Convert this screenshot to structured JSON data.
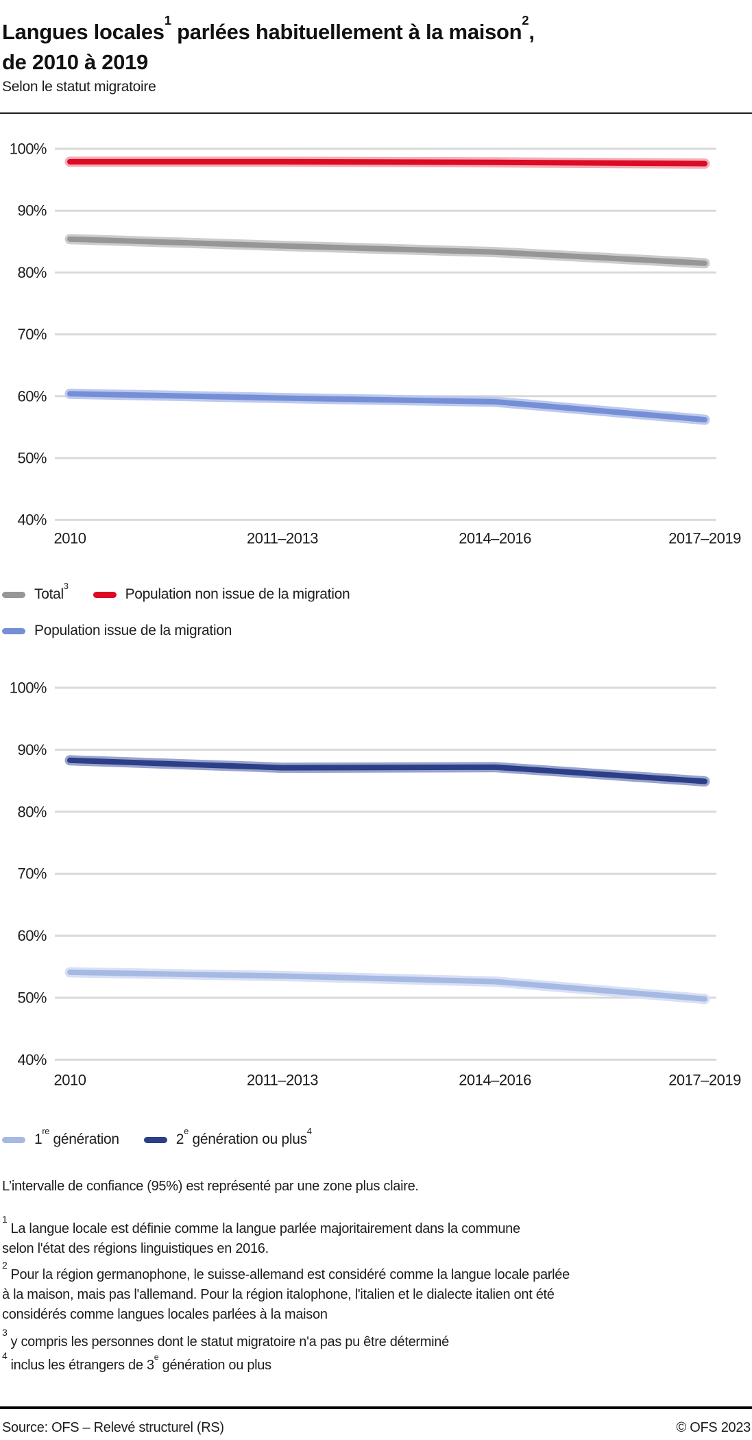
{
  "header": {
    "title": {
      "part1": "Langues locales",
      "sup1": "1",
      "part2": " parlées habituellement à la maison",
      "sup2": "2",
      "part3": ",",
      "line2": "de 2010 à 2019"
    },
    "subtitle": "Selon le statut migratoire"
  },
  "chart_data": [
    {
      "type": "line",
      "x": [
        "2010",
        "2011–2013",
        "2014–2016",
        "2017–2019"
      ],
      "y_ticks": [
        "100%",
        "90%",
        "80%",
        "70%",
        "60%",
        "50%",
        "40%"
      ],
      "ylim": [
        40,
        100
      ],
      "grid": true,
      "legend_position": "below",
      "series": [
        {
          "name": "Total",
          "values": [
            85.4,
            84.3,
            83.3,
            81.5
          ],
          "color": "#969696",
          "ci_color": "#cccccc"
        },
        {
          "name": "Population non issue de la migration",
          "values": [
            97.9,
            97.9,
            97.8,
            97.6
          ],
          "color": "#dc0a23",
          "ci_color": "#f3aeb9"
        },
        {
          "name": "Population issue de la migration",
          "values": [
            60.4,
            59.7,
            59.1,
            56.2
          ],
          "color": "#748fd6",
          "ci_color": "#bcc9ee"
        }
      ]
    },
    {
      "type": "line",
      "x": [
        "2010",
        "2011–2013",
        "2014–2016",
        "2017–2019"
      ],
      "y_ticks": [
        "100%",
        "90%",
        "80%",
        "70%",
        "60%",
        "50%",
        "40%"
      ],
      "ylim": [
        40,
        100
      ],
      "grid": true,
      "legend_position": "below",
      "series": [
        {
          "name": "1re génération",
          "values": [
            54.1,
            53.5,
            52.6,
            49.8
          ],
          "color": "#a6b9e3",
          "ci_color": "#d8e0f5"
        },
        {
          "name": "2e génération ou plus",
          "values": [
            88.3,
            87.1,
            87.2,
            84.9
          ],
          "color": "#2b3e87",
          "ci_color": "#98a4cd"
        }
      ]
    }
  ],
  "legends": [
    {
      "items": [
        {
          "pre": "Total",
          "sup": "3",
          "color": "#969696"
        },
        {
          "pre": "Population non issue de la migration",
          "color": "#dc0a23"
        },
        {
          "pre": "Population issue de la migration",
          "color": "#748fd6"
        }
      ]
    },
    {
      "items": [
        {
          "pre": "1",
          "sup": "re",
          "post": " génération",
          "color": "#a6b9e3"
        },
        {
          "pre": "2",
          "sup": "e",
          "post": " génération ou plus",
          "sup2": "4",
          "color": "#2b3e87"
        }
      ]
    }
  ],
  "notes": {
    "confidence": "L’intervalle de confiance (95%) est représenté par une zone plus claire.",
    "footnotes": [
      {
        "marker": "1",
        "lines": [
          "La langue locale est définie comme la langue parlée majoritairement dans la commune",
          "selon l'état des régions linguistiques en 2016."
        ]
      },
      {
        "marker": "2",
        "lines": [
          "Pour la région germanophone, le suisse-allemand est considéré comme la langue locale parlée",
          "à la maison, mais pas l'allemand. Pour la région italophone, l'italien et le dialecte italien ont été",
          "considérés comme langues locales parlées à la maison"
        ]
      },
      {
        "marker": "3",
        "lines": [
          "y compris les personnes dont le statut migratoire n'a pas pu être déterminé"
        ]
      },
      {
        "marker": "4",
        "pre": "inclus les étrangers de 3",
        "sup": "e",
        "post": " génération ou plus"
      }
    ]
  },
  "footer": {
    "source": "Source: OFS – Relevé structurel (RS)",
    "copyright": "© OFS 2023"
  }
}
